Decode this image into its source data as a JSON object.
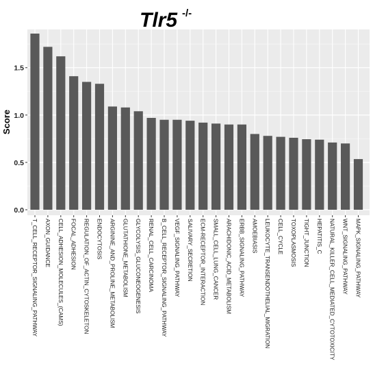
{
  "title": {
    "main": "Tlr5",
    "superscript": "-/-"
  },
  "chart_data": {
    "type": "bar",
    "title": "Tlr5 -/-",
    "xlabel": "",
    "ylabel": "Score",
    "ylim": [
      0,
      1.95
    ],
    "yticks": [
      "0.0",
      "0.5",
      "1.0",
      "1.5"
    ],
    "grid": true,
    "bar_color": "#595959",
    "panel_color": "#ebebeb",
    "categories": [
      "T_CELL_RECEPTOR_SIGNALING_PATHWAY",
      "AXON_GUIDANCE",
      "CELL_ADHESION_MOLECULES_(CAMS)",
      "FOCAL_ADHESION",
      "REGULATION_OF_ACTIN_CYTOSKELETON",
      "ENDOCYTOSIS",
      "ARGININE_AND_PROLINE_METABOLISM",
      "GLUTATHIONE_METABOLISM",
      "GLYCOLYSIS_GLUCONEOGENESIS",
      "RENAL_CELL_CARCINOMA",
      "B_CELL_RECEPTOR_SIGNALING_PATHWAY",
      "VEGF_SIGNALING_PATHWAY",
      "SALIVARY_SECRETION",
      "ECM-RECEPTOR_INTERACTION",
      "SMALL_CELL_LUNG_CANCER",
      "ARACHIDONIC_ACID_METABOLISM",
      "ERBB_SIGNALING_PATHWAY",
      "AMOEBIASIS",
      "LEUKOCYTE_TRANSENDOTHELIAL_MIGRATION",
      "CELL_CYCLE",
      "TOXOPLASMOSIS",
      "TIGHT_JUNCTION",
      "HEPATITIS_C",
      "NATURAL_KILLER_CELL_MEDIATED_CYTOTOXICITY",
      "WNT_SIGNALING_PATHWAY",
      "MAPK_SIGNALING_PATHWAY"
    ],
    "values": [
      1.86,
      1.72,
      1.62,
      1.41,
      1.35,
      1.33,
      1.09,
      1.08,
      1.04,
      0.97,
      0.95,
      0.95,
      0.94,
      0.92,
      0.91,
      0.9,
      0.9,
      0.8,
      0.78,
      0.77,
      0.76,
      0.745,
      0.74,
      0.71,
      0.7,
      0.535
    ]
  }
}
